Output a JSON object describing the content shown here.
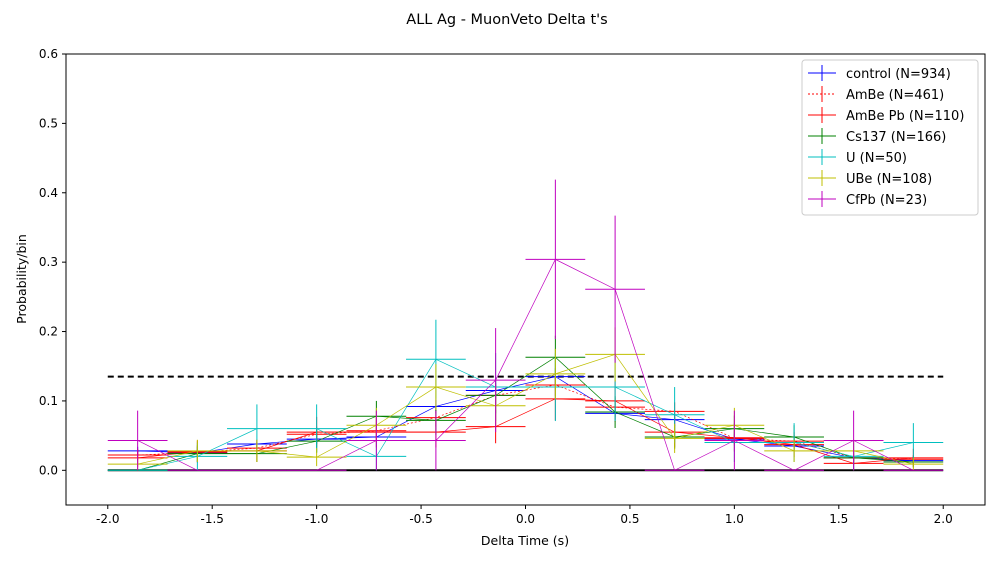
{
  "chart_data": {
    "type": "line",
    "title": "ALL Ag - MuonVeto Delta t's",
    "xlabel": "Delta Time (s)",
    "ylabel": "Probability/bin",
    "xlim": [
      -2.2,
      2.2
    ],
    "ylim": [
      -0.05,
      0.6
    ],
    "x_ticks": [
      "-2.0",
      "-1.5",
      "-1.0",
      "-0.5",
      "0.0",
      "0.5",
      "1.0",
      "1.5",
      "2.0"
    ],
    "y_ticks": [
      "0.0",
      "0.1",
      "0.2",
      "0.3",
      "0.4",
      "0.5",
      "0.6"
    ],
    "grid": false,
    "legend_position": "top-right",
    "x_bin_centers": [
      -1.857,
      -1.571,
      -1.286,
      -1.0,
      -0.714,
      -0.429,
      -0.143,
      0.143,
      0.429,
      0.714,
      1.0,
      1.286,
      1.571,
      1.857
    ],
    "bin_half_width": 0.143,
    "reference_lines": [
      {
        "style": "dashed",
        "color": "#000000",
        "y": 0.135,
        "x_range": [
          -2.0,
          2.0
        ]
      },
      {
        "style": "solid",
        "color": "#000000",
        "y": 0.0,
        "x_range": [
          -2.0,
          2.0
        ]
      }
    ],
    "series": [
      {
        "name": "control (N=934)",
        "color": "#0000ff",
        "line_style": "solid",
        "values": [
          0.028,
          0.025,
          0.038,
          0.045,
          0.048,
          0.092,
          0.115,
          0.135,
          0.082,
          0.073,
          0.045,
          0.035,
          0.018,
          0.014
        ],
        "errors": [
          0.006,
          0.005,
          0.006,
          0.007,
          0.007,
          0.01,
          0.011,
          0.012,
          0.009,
          0.009,
          0.007,
          0.006,
          0.004,
          0.004
        ]
      },
      {
        "name": "AmBe (N=461)",
        "color": "#ff0000",
        "line_style": "dotted",
        "values": [
          0.022,
          0.026,
          0.032,
          0.052,
          0.057,
          0.076,
          0.108,
          0.123,
          0.091,
          0.085,
          0.046,
          0.042,
          0.018,
          0.016
        ],
        "errors": [
          0.007,
          0.008,
          0.009,
          0.011,
          0.011,
          0.013,
          0.015,
          0.016,
          0.014,
          0.013,
          0.01,
          0.009,
          0.006,
          0.006
        ]
      },
      {
        "name": "AmBe Pb (N=110)",
        "color": "#ff0000",
        "line_style": "solid",
        "values": [
          0.018,
          0.027,
          0.028,
          0.055,
          0.055,
          0.055,
          0.063,
          0.103,
          0.1,
          0.055,
          0.047,
          0.037,
          0.01,
          0.018
        ],
        "errors": [
          0.013,
          0.016,
          0.016,
          0.022,
          0.022,
          0.022,
          0.024,
          0.031,
          0.03,
          0.022,
          0.02,
          0.018,
          0.01,
          0.013
        ]
      },
      {
        "name": "Cs137 (N=166)",
        "color": "#008000",
        "line_style": "solid",
        "values": [
          0.0,
          0.024,
          0.024,
          0.042,
          0.078,
          0.072,
          0.108,
          0.163,
          0.084,
          0.048,
          0.06,
          0.048,
          0.018,
          0.012
        ],
        "errors": [
          0.0,
          0.012,
          0.012,
          0.016,
          0.022,
          0.021,
          0.026,
          0.031,
          0.023,
          0.017,
          0.019,
          0.017,
          0.01,
          0.008
        ]
      },
      {
        "name": "U (N=50)",
        "color": "#00bfbf",
        "line_style": "solid",
        "values": [
          0.0,
          0.02,
          0.06,
          0.06,
          0.02,
          0.16,
          0.12,
          0.12,
          0.12,
          0.08,
          0.04,
          0.04,
          0.02,
          0.04
        ],
        "errors": [
          0.0,
          0.02,
          0.035,
          0.035,
          0.02,
          0.057,
          0.049,
          0.049,
          0.049,
          0.04,
          0.028,
          0.028,
          0.02,
          0.028
        ]
      },
      {
        "name": "UBe (N=108)",
        "color": "#bfbf00",
        "line_style": "solid",
        "values": [
          0.009,
          0.028,
          0.028,
          0.019,
          0.065,
          0.12,
          0.093,
          0.139,
          0.167,
          0.046,
          0.065,
          0.028,
          0.028,
          0.009
        ],
        "errors": [
          0.009,
          0.016,
          0.016,
          0.013,
          0.025,
          0.033,
          0.029,
          0.036,
          0.039,
          0.021,
          0.025,
          0.016,
          0.016,
          0.009
        ]
      },
      {
        "name": "CfPb (N=23)",
        "color": "#bf00bf",
        "line_style": "solid",
        "values": [
          0.043,
          0.0,
          0.0,
          0.0,
          0.043,
          0.043,
          0.13,
          0.304,
          0.261,
          0.0,
          0.043,
          0.0,
          0.043,
          0.0
        ],
        "errors": [
          0.043,
          0.0,
          0.0,
          0.0,
          0.043,
          0.043,
          0.075,
          0.115,
          0.106,
          0.0,
          0.043,
          0.0,
          0.043,
          0.0
        ]
      }
    ]
  }
}
